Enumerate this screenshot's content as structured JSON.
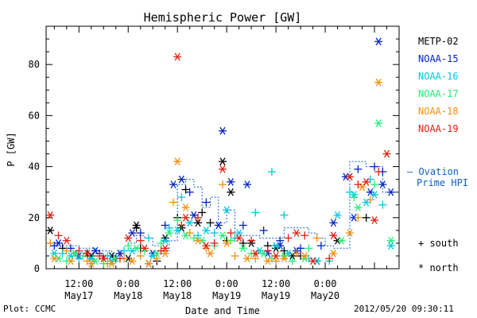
{
  "chart_data": {
    "type": "scatter",
    "title": "Hemispheric Power [GW]",
    "xlabel": "Date and Time",
    "ylabel": "P [GW]",
    "xlim": [
      4,
      90
    ],
    "ylim": [
      0,
      95
    ],
    "x_units": "hours after 2012-05-17 00:00 UT",
    "yticks": [
      0,
      20,
      40,
      60,
      80
    ],
    "xticks": [
      {
        "x": 12,
        "time": "12:00",
        "date": "May17"
      },
      {
        "x": 24,
        "time": "0:00",
        "date": "May18"
      },
      {
        "x": 36,
        "time": "12:00",
        "date": "May18"
      },
      {
        "x": 48,
        "time": "0:00",
        "date": "May19"
      },
      {
        "x": 60,
        "time": "12:00",
        "date": "May19"
      },
      {
        "x": 72,
        "time": "0:00",
        "date": "May20"
      }
    ],
    "symbols": {
      "south": "+",
      "north": "*"
    },
    "legend": [
      {
        "name": "METP-02",
        "color": "#000000"
      },
      {
        "name": "NOAA-15",
        "color": "#0022c8"
      },
      {
        "name": "NOAA-16",
        "color": "#00c8e0"
      },
      {
        "name": "NOAA-17",
        "color": "#22ee77"
      },
      {
        "name": "NOAA-18",
        "color": "#f09010"
      },
      {
        "name": "NOAA-19",
        "color": "#e02010"
      }
    ],
    "ovation": {
      "label_line1": "— Ovation",
      "label_line2": "Prime HPI",
      "color": "#1060c8",
      "step_x": [
        4,
        6,
        8,
        10,
        12,
        14,
        16,
        18,
        20,
        22,
        24,
        26,
        28,
        30,
        32,
        34,
        36,
        38,
        40,
        42,
        44,
        46,
        48,
        50,
        52,
        54,
        56,
        58,
        60,
        62,
        64,
        66,
        68,
        70,
        72,
        74,
        76,
        78,
        80,
        82,
        84,
        86,
        88
      ],
      "step_y": [
        10,
        10,
        9,
        9,
        8,
        8,
        7,
        7,
        6,
        7,
        10,
        13,
        12,
        9,
        7,
        11,
        33,
        35,
        32,
        24,
        28,
        18,
        23,
        13,
        13,
        13,
        12,
        12,
        12,
        16,
        16,
        16,
        14,
        12,
        9,
        8,
        8,
        42,
        42,
        40,
        40,
        30,
        30
      ]
    },
    "side_labels": [
      "+ south",
      "* north"
    ],
    "series": [
      {
        "name": "METP-02",
        "color": "#000000",
        "south": [
          [
            8,
            8
          ],
          [
            14,
            6
          ],
          [
            18,
            4
          ],
          [
            26,
            16
          ],
          [
            27,
            8
          ],
          [
            31,
            3
          ],
          [
            36,
            20
          ],
          [
            38,
            31
          ],
          [
            42,
            22
          ],
          [
            44,
            18
          ],
          [
            48,
            11
          ],
          [
            52,
            10
          ],
          [
            58,
            9
          ],
          [
            62,
            7
          ],
          [
            66,
            5
          ],
          [
            82,
            20
          ]
        ],
        "north": [
          [
            5,
            15
          ],
          [
            11,
            6
          ],
          [
            15,
            5
          ],
          [
            20,
            5
          ],
          [
            24,
            4
          ],
          [
            26,
            17
          ],
          [
            29,
            2
          ],
          [
            33,
            12
          ],
          [
            37,
            16
          ],
          [
            41,
            18
          ],
          [
            47,
            42
          ],
          [
            49,
            30
          ],
          [
            54,
            10
          ],
          [
            60,
            8
          ],
          [
            64,
            5
          ],
          [
            70,
            3
          ],
          [
            75,
            11
          ]
        ]
      },
      {
        "name": "NOAA-15",
        "color": "#0022c8",
        "south": [
          [
            6,
            9
          ],
          [
            10,
            8
          ],
          [
            17,
            6
          ],
          [
            21,
            4
          ],
          [
            27,
            14
          ],
          [
            33,
            17
          ],
          [
            39,
            30
          ],
          [
            43,
            26
          ],
          [
            52,
            17
          ],
          [
            57,
            15
          ],
          [
            61,
            11
          ],
          [
            66,
            8
          ],
          [
            71,
            9
          ],
          [
            80,
            39
          ],
          [
            84,
            40
          ],
          [
            86,
            38
          ]
        ],
        "north": [
          [
            7,
            10
          ],
          [
            12,
            5
          ],
          [
            16,
            7
          ],
          [
            22,
            6
          ],
          [
            25,
            14
          ],
          [
            30,
            6
          ],
          [
            35,
            33
          ],
          [
            37,
            35
          ],
          [
            40,
            21
          ],
          [
            46,
            17
          ],
          [
            47,
            54
          ],
          [
            49,
            34
          ],
          [
            53,
            33
          ],
          [
            58,
            6
          ],
          [
            61,
            9
          ],
          [
            65,
            7
          ],
          [
            74,
            18
          ],
          [
            77,
            36
          ],
          [
            79,
            20
          ],
          [
            83,
            30
          ],
          [
            85,
            89
          ],
          [
            86,
            33
          ],
          [
            88,
            30
          ]
        ]
      },
      {
        "name": "NOAA-16",
        "color": "#00c8e0",
        "south": [
          [
            8,
            6
          ],
          [
            12,
            4
          ],
          [
            19,
            5
          ],
          [
            23,
            7
          ],
          [
            29,
            12
          ],
          [
            34,
            16
          ],
          [
            37,
            28
          ],
          [
            41,
            13
          ],
          [
            45,
            14
          ],
          [
            50,
            12
          ],
          [
            55,
            22
          ],
          [
            59,
            38
          ],
          [
            62,
            21
          ],
          [
            68,
            4
          ],
          [
            73,
            3
          ],
          [
            78,
            30
          ],
          [
            83,
            35
          ],
          [
            86,
            25
          ]
        ],
        "north": [
          [
            6,
            6
          ],
          [
            10,
            5
          ],
          [
            15,
            4
          ],
          [
            20,
            3
          ],
          [
            25,
            7
          ],
          [
            30,
            5
          ],
          [
            33,
            11
          ],
          [
            36,
            15
          ],
          [
            39,
            18
          ],
          [
            43,
            15
          ],
          [
            48,
            23
          ],
          [
            51,
            14
          ],
          [
            56,
            7
          ],
          [
            60,
            9
          ],
          [
            63,
            6
          ],
          [
            70,
            3
          ],
          [
            75,
            21
          ],
          [
            79,
            29
          ],
          [
            82,
            26
          ],
          [
            84,
            29
          ],
          [
            88,
            9
          ]
        ]
      },
      {
        "name": "NOAA-17",
        "color": "#22ee77",
        "south": [
          [
            9,
            3
          ],
          [
            13,
            5
          ],
          [
            18,
            2
          ],
          [
            24,
            9
          ],
          [
            28,
            7
          ],
          [
            32,
            10
          ],
          [
            36,
            19
          ],
          [
            40,
            12
          ],
          [
            45,
            9
          ],
          [
            49,
            11
          ],
          [
            54,
            6
          ],
          [
            59,
            4
          ],
          [
            64,
            3
          ],
          [
            68,
            8
          ],
          [
            79,
            28
          ],
          [
            84,
            33
          ]
        ],
        "north": [
          [
            7,
            4
          ],
          [
            11,
            6
          ],
          [
            16,
            3
          ],
          [
            21,
            4
          ],
          [
            26,
            8
          ],
          [
            31,
            6
          ],
          [
            34,
            14
          ],
          [
            38,
            13
          ],
          [
            42,
            11
          ],
          [
            47,
            13
          ],
          [
            52,
            8
          ],
          [
            57,
            6
          ],
          [
            62,
            5
          ],
          [
            67,
            4
          ],
          [
            76,
            11
          ],
          [
            80,
            24
          ],
          [
            85,
            57
          ],
          [
            88,
            11
          ]
        ]
      },
      {
        "name": "NOAA-18",
        "color": "#f09010",
        "south": [
          [
            5,
            10
          ],
          [
            9,
            7
          ],
          [
            14,
            3
          ],
          [
            19,
            2
          ],
          [
            23,
            4
          ],
          [
            27,
            5
          ],
          [
            31,
            4
          ],
          [
            35,
            26
          ],
          [
            39,
            14
          ],
          [
            43,
            8
          ],
          [
            47,
            33
          ],
          [
            50,
            5
          ],
          [
            55,
            4
          ],
          [
            60,
            3
          ],
          [
            65,
            6
          ],
          [
            70,
            12
          ],
          [
            80,
            20
          ],
          [
            83,
            27
          ]
        ],
        "north": [
          [
            6,
            4
          ],
          [
            10,
            3
          ],
          [
            15,
            2
          ],
          [
            20,
            2
          ],
          [
            25,
            3
          ],
          [
            29,
            2
          ],
          [
            33,
            6
          ],
          [
            36,
            42
          ],
          [
            38,
            24
          ],
          [
            41,
            11
          ],
          [
            44,
            6
          ],
          [
            48,
            10
          ],
          [
            53,
            4
          ],
          [
            58,
            3
          ],
          [
            62,
            4
          ],
          [
            67,
            5
          ],
          [
            74,
            6
          ],
          [
            78,
            14
          ],
          [
            81,
            32
          ],
          [
            85,
            73
          ]
        ]
      },
      {
        "name": "NOAA-19",
        "color": "#e02010",
        "south": [
          [
            7,
            13
          ],
          [
            12,
            7
          ],
          [
            17,
            5
          ],
          [
            22,
            4
          ],
          [
            27,
            11
          ],
          [
            32,
            7
          ],
          [
            37,
            17
          ],
          [
            41,
            20
          ],
          [
            45,
            10
          ],
          [
            49,
            14
          ],
          [
            54,
            11
          ],
          [
            58,
            7
          ],
          [
            63,
            12
          ],
          [
            67,
            13
          ],
          [
            73,
            4
          ],
          [
            80,
            33
          ],
          [
            85,
            38
          ]
        ],
        "north": [
          [
            5,
            21
          ],
          [
            9,
            11
          ],
          [
            14,
            6
          ],
          [
            18,
            4
          ],
          [
            24,
            12
          ],
          [
            28,
            8
          ],
          [
            33,
            8
          ],
          [
            36,
            83
          ],
          [
            38,
            20
          ],
          [
            43,
            9
          ],
          [
            47,
            39
          ],
          [
            51,
            12
          ],
          [
            55,
            6
          ],
          [
            60,
            5
          ],
          [
            65,
            14
          ],
          [
            69,
            3
          ],
          [
            74,
            13
          ],
          [
            78,
            36
          ],
          [
            82,
            34
          ],
          [
            84,
            19
          ],
          [
            87,
            45
          ]
        ]
      }
    ]
  },
  "footer": {
    "left": "Plot: CCMC",
    "right": "2012/05/20 09:30:11"
  }
}
